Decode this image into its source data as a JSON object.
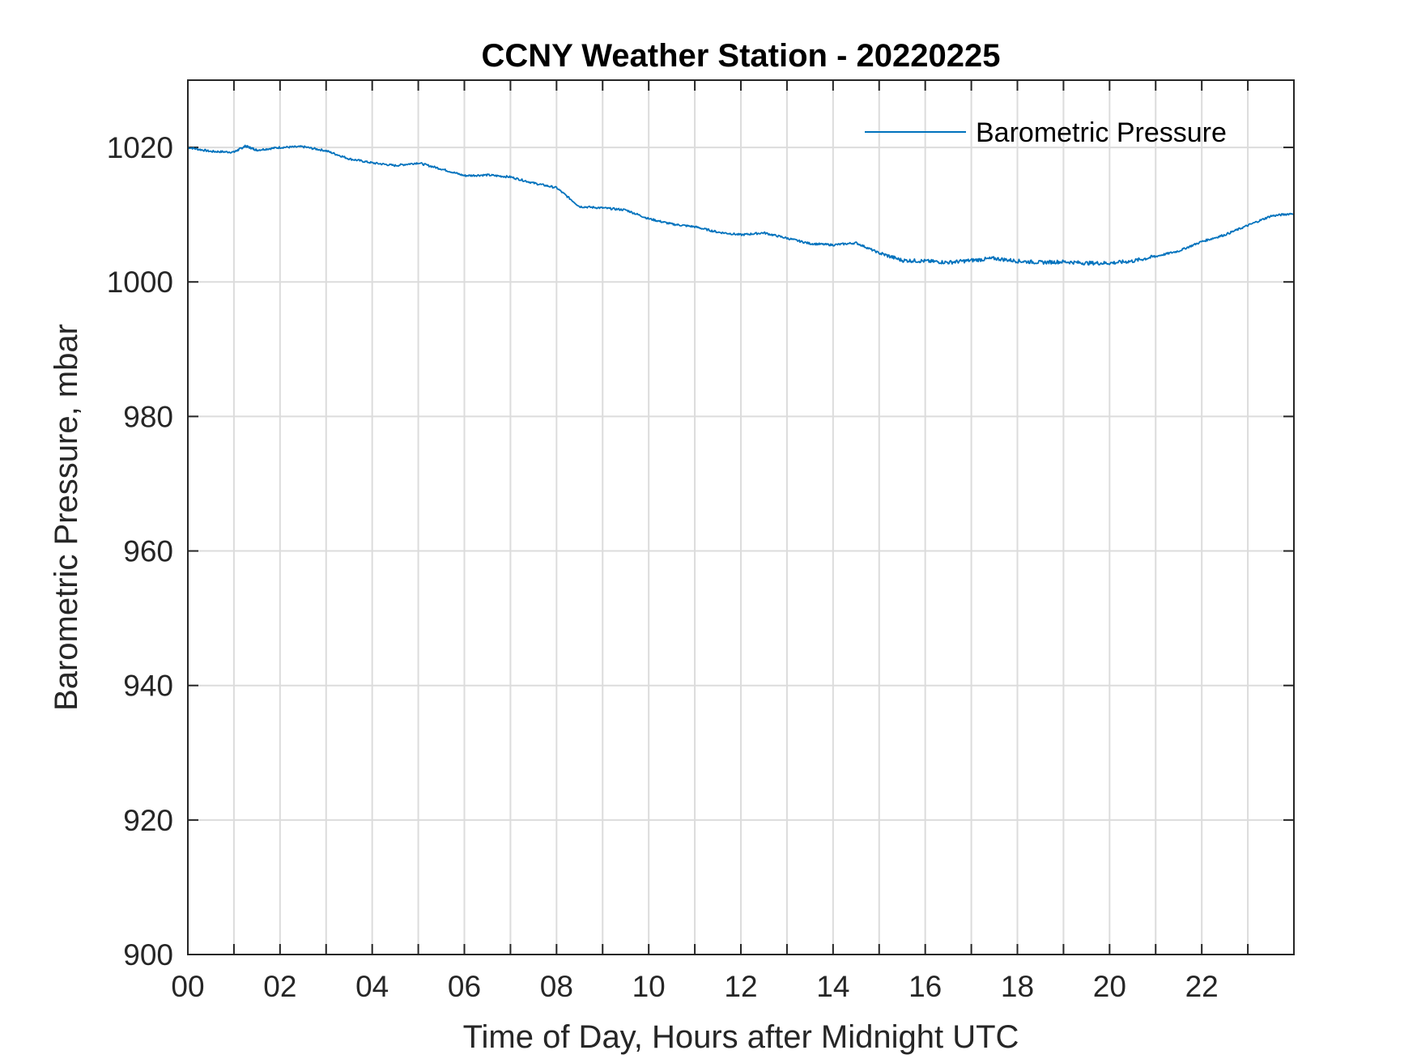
{
  "chart_data": {
    "type": "line",
    "title": "CCNY Weather Station - 20220225",
    "xlabel": "Time of Day, Hours after Midnight UTC",
    "ylabel": "Barometric Pressure, mbar",
    "xlim": [
      0,
      24
    ],
    "ylim": [
      900,
      1030
    ],
    "x_ticks": [
      0,
      2,
      4,
      6,
      8,
      10,
      12,
      14,
      16,
      18,
      20,
      22
    ],
    "x_tick_labels": [
      "00",
      "02",
      "04",
      "06",
      "08",
      "10",
      "12",
      "14",
      "16",
      "18",
      "20",
      "22"
    ],
    "x_minor_grid_step": 1,
    "y_ticks": [
      900,
      920,
      940,
      960,
      980,
      1000,
      1020
    ],
    "y_tick_labels": [
      "900",
      "920",
      "940",
      "960",
      "980",
      "1000",
      "1020"
    ],
    "grid": true,
    "legend_position": "top-right",
    "series": [
      {
        "name": "Barometric Pressure",
        "color": "#0072BD",
        "x": [
          0,
          0.5,
          1,
          1.25,
          1.5,
          2,
          2.5,
          3,
          3.5,
          4,
          4.5,
          5,
          5.5,
          6,
          6.5,
          7,
          7.5,
          8,
          8.5,
          9,
          9.5,
          10,
          10.5,
          11,
          11.5,
          12,
          12.5,
          13,
          13.5,
          14,
          14.5,
          15,
          15.5,
          16,
          16.5,
          17,
          17.5,
          18,
          18.5,
          19,
          19.5,
          20,
          20.5,
          21,
          21.5,
          22,
          22.5,
          23,
          23.5,
          24
        ],
        "y": [
          1020,
          1019.4,
          1019.3,
          1020.2,
          1019.6,
          1020,
          1020.1,
          1019.5,
          1018.3,
          1017.7,
          1017.3,
          1017.7,
          1016.8,
          1015.8,
          1015.9,
          1015.6,
          1014.7,
          1014,
          1011.2,
          1011,
          1010.7,
          1009.4,
          1008.6,
          1008.2,
          1007.4,
          1007,
          1007.3,
          1006.5,
          1005.7,
          1005.5,
          1005.8,
          1004.3,
          1003.2,
          1003.1,
          1002.9,
          1003.2,
          1003.5,
          1003.1,
          1002.9,
          1003,
          1002.8,
          1002.8,
          1003.1,
          1003.8,
          1004.6,
          1006,
          1007,
          1008.4,
          1009.8,
          1010.2
        ]
      }
    ]
  }
}
